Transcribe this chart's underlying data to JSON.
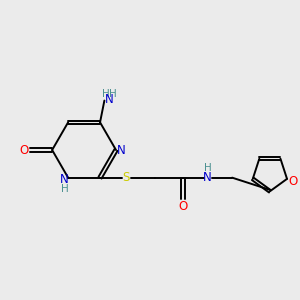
{
  "bg_color": "#ebebeb",
  "atom_colors": {
    "C": "#000000",
    "N": "#0000cc",
    "O": "#ff0000",
    "S": "#cccc00",
    "H": "#4a9090"
  },
  "figsize": [
    3.0,
    3.0
  ],
  "dpi": 100,
  "xlim": [
    0,
    10
  ],
  "ylim": [
    0,
    10
  ]
}
